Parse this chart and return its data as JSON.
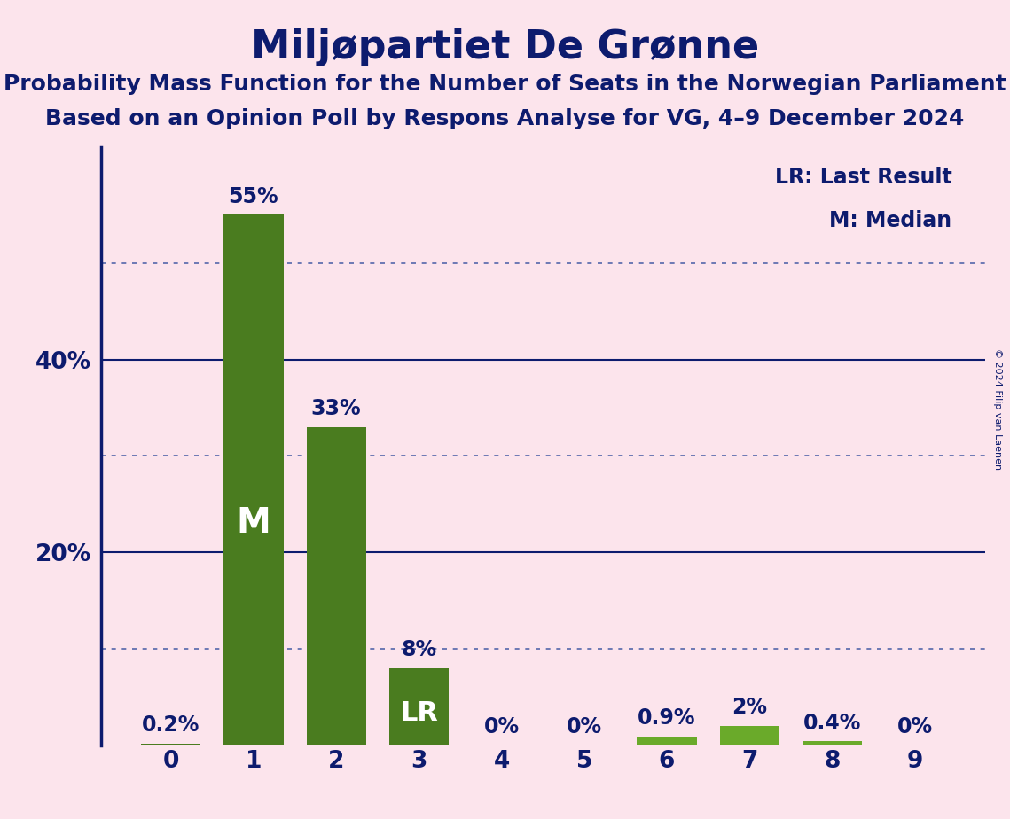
{
  "title": "Miljøpartiet De Grønne",
  "subtitle1": "Probability Mass Function for the Number of Seats in the Norwegian Parliament",
  "subtitle2": "Based on an Opinion Poll by Respons Analyse for VG, 4–9 December 2024",
  "copyright": "© 2024 Filip van Laenen",
  "legend_lr": "LR: Last Result",
  "legend_m": "M: Median",
  "categories": [
    0,
    1,
    2,
    3,
    4,
    5,
    6,
    7,
    8,
    9
  ],
  "values": [
    0.2,
    55,
    33,
    8,
    0,
    0,
    0.9,
    2,
    0.4,
    0
  ],
  "bar_colors_dark": "#4a7c1f",
  "bar_colors_light": "#6aaa2a",
  "dark_bars": [
    0,
    1,
    2,
    3,
    4,
    5,
    9
  ],
  "light_bars": [
    6,
    7,
    8
  ],
  "median_bar": 1,
  "lr_bar": 3,
  "background_color": "#fce4ec",
  "title_color": "#0d1b6e",
  "axis_color": "#0d1b6e",
  "grid_solid_color": "#0d1b6e",
  "grid_dot_color": "#5566aa",
  "yticks": [
    20,
    40
  ],
  "solid_lines": [
    20,
    40
  ],
  "dotted_lines": [
    10,
    30,
    50
  ],
  "ylim": [
    0,
    62
  ],
  "title_fontsize": 32,
  "subtitle_fontsize": 18,
  "label_fontsize": 17,
  "tick_fontsize": 19,
  "legend_fontsize": 17,
  "m_fontsize": 28,
  "lr_fontsize": 22
}
